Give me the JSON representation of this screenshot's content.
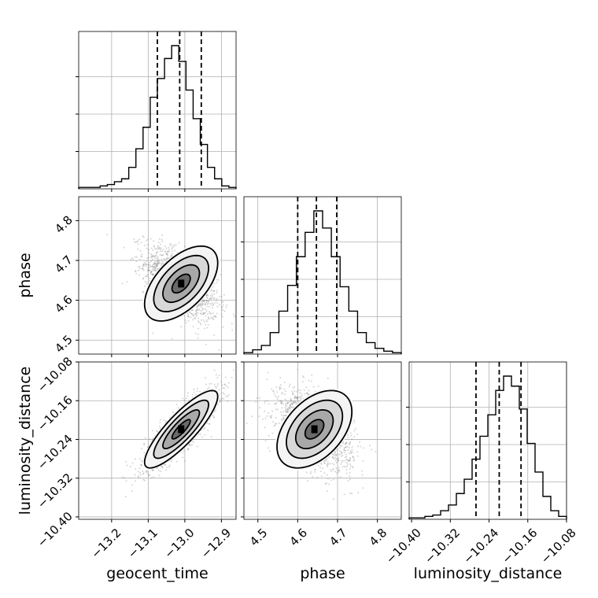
{
  "chart_data": {
    "type": "corner",
    "parameters": [
      "geocent_time",
      "phase",
      "luminosity_distance"
    ],
    "ranges": {
      "geocent_time": [
        -13.29,
        -12.86
      ],
      "phase": [
        4.465,
        4.86
      ],
      "luminosity_distance": [
        -10.405,
        -10.08
      ]
    },
    "ticks": {
      "geocent_time": [
        -13.2,
        -13.1,
        -13.0,
        -12.9
      ],
      "phase": [
        4.5,
        4.6,
        4.7,
        4.8
      ],
      "luminosity_distance": [
        -10.4,
        -10.32,
        -10.24,
        -10.16,
        -10.08
      ]
    },
    "tick_labels": {
      "geocent_time": [
        "−13.2",
        "−13.1",
        "−13.0",
        "−12.9"
      ],
      "phase": [
        "4.5",
        "4.6",
        "4.7",
        "4.8"
      ],
      "luminosity_distance": [
        "−10.40",
        "−10.32",
        "−10.24",
        "−10.16",
        "−10.08"
      ]
    },
    "marginals": {
      "geocent_time": {
        "quantiles": [
          -13.075,
          -13.014,
          -12.955
        ],
        "bin_counts": [
          0.01,
          0.01,
          0.01,
          0.02,
          0.03,
          0.05,
          0.07,
          0.15,
          0.28,
          0.43,
          0.64,
          0.77,
          0.91,
          1.0,
          0.89,
          0.69,
          0.49,
          0.31,
          0.15,
          0.07,
          0.02,
          0.01
        ]
      },
      "phase": {
        "quantiles": [
          4.6,
          4.647,
          4.698
        ],
        "bin_counts": [
          0.01,
          0.03,
          0.06,
          0.15,
          0.3,
          0.48,
          0.68,
          0.85,
          1.0,
          0.88,
          0.68,
          0.47,
          0.3,
          0.15,
          0.08,
          0.04,
          0.02,
          0.01
        ]
      },
      "luminosity_distance": {
        "quantiles": [
          -10.267,
          -10.219,
          -10.174
        ],
        "bin_counts": [
          0.01,
          0.01,
          0.02,
          0.03,
          0.06,
          0.1,
          0.18,
          0.28,
          0.42,
          0.58,
          0.73,
          0.9,
          1.0,
          0.93,
          0.77,
          0.53,
          0.33,
          0.16,
          0.06,
          0.02
        ]
      }
    },
    "joint": [
      {
        "x": "geocent_time",
        "y": "phase",
        "mean": [
          -13.01,
          4.642
        ],
        "sd": [
          0.05,
          0.047
        ],
        "rho": -0.55
      },
      {
        "x": "geocent_time",
        "y": "luminosity_distance",
        "mean": [
          -13.01,
          -10.219
        ],
        "sd": [
          0.05,
          0.04
        ],
        "rho": 0.85
      },
      {
        "x": "phase",
        "y": "luminosity_distance",
        "mean": [
          4.642,
          -10.219
        ],
        "sd": [
          0.047,
          0.04
        ],
        "rho": -0.45
      }
    ],
    "contour_levels": [
      0.5,
      1.0,
      1.5,
      2.0
    ],
    "grid": true
  }
}
